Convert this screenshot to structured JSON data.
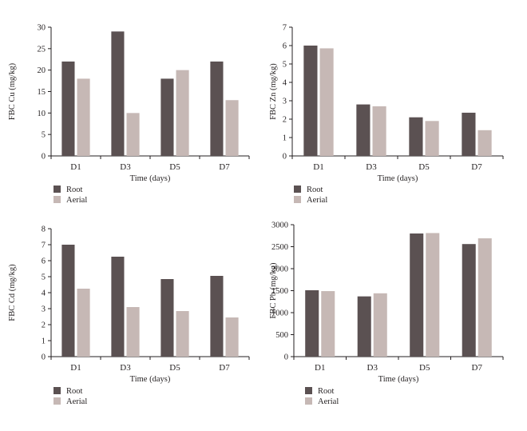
{
  "colors": {
    "root": "#5b5152",
    "aerial": "#c6b8b5",
    "axis": "#231f20"
  },
  "chart_data": [
    {
      "type": "bar",
      "categories": [
        "D1",
        "D3",
        "D5",
        "D7"
      ],
      "series": [
        {
          "name": "Root",
          "values": [
            22,
            29,
            18,
            22
          ]
        },
        {
          "name": "Aerial",
          "values": [
            18,
            10,
            20,
            13
          ]
        }
      ],
      "xlabel": "Time (days)",
      "ylabel": "FBC Cu (mg/kg)",
      "ylim": [
        0,
        30
      ],
      "yticks": [
        0,
        5,
        10,
        15,
        20,
        25,
        30
      ],
      "grid": false,
      "legend": "bottom-left"
    },
    {
      "type": "bar",
      "categories": [
        "D1",
        "D3",
        "D5",
        "D7"
      ],
      "series": [
        {
          "name": "Root",
          "values": [
            6.0,
            2.8,
            2.1,
            2.35
          ]
        },
        {
          "name": "Aerial",
          "values": [
            5.85,
            2.7,
            1.9,
            1.4
          ]
        }
      ],
      "xlabel": "Time (days)",
      "ylabel": "FBC Zn (mg/kg)",
      "ylim": [
        0,
        7
      ],
      "yticks": [
        0,
        1,
        2,
        3,
        4,
        5,
        6,
        7
      ],
      "grid": false,
      "legend": "bottom-left"
    },
    {
      "type": "bar",
      "categories": [
        "D1",
        "D3",
        "D5",
        "D7"
      ],
      "series": [
        {
          "name": "Root",
          "values": [
            7.0,
            6.25,
            4.85,
            5.05
          ]
        },
        {
          "name": "Aerial",
          "values": [
            4.25,
            3.1,
            2.85,
            2.45
          ]
        }
      ],
      "xlabel": "Time (days)",
      "ylabel": "FBC Cd (mg/kg)",
      "ylim": [
        0,
        8
      ],
      "yticks": [
        0,
        1,
        2,
        3,
        4,
        5,
        6,
        7,
        8
      ],
      "grid": false,
      "legend": "bottom-left"
    },
    {
      "type": "bar",
      "categories": [
        "D1",
        "D3",
        "D5",
        "D7"
      ],
      "series": [
        {
          "name": "Root",
          "values": [
            1510,
            1370,
            2800,
            2560
          ]
        },
        {
          "name": "Aerial",
          "values": [
            1490,
            1440,
            2810,
            2690
          ]
        }
      ],
      "xlabel": "Time (days)",
      "ylabel": "FBC Pb (mg/kg)",
      "ylim": [
        0,
        3000
      ],
      "yticks": [
        0,
        500,
        1000,
        1500,
        2000,
        2500,
        3000
      ],
      "grid": false,
      "legend": "bottom-left"
    }
  ]
}
